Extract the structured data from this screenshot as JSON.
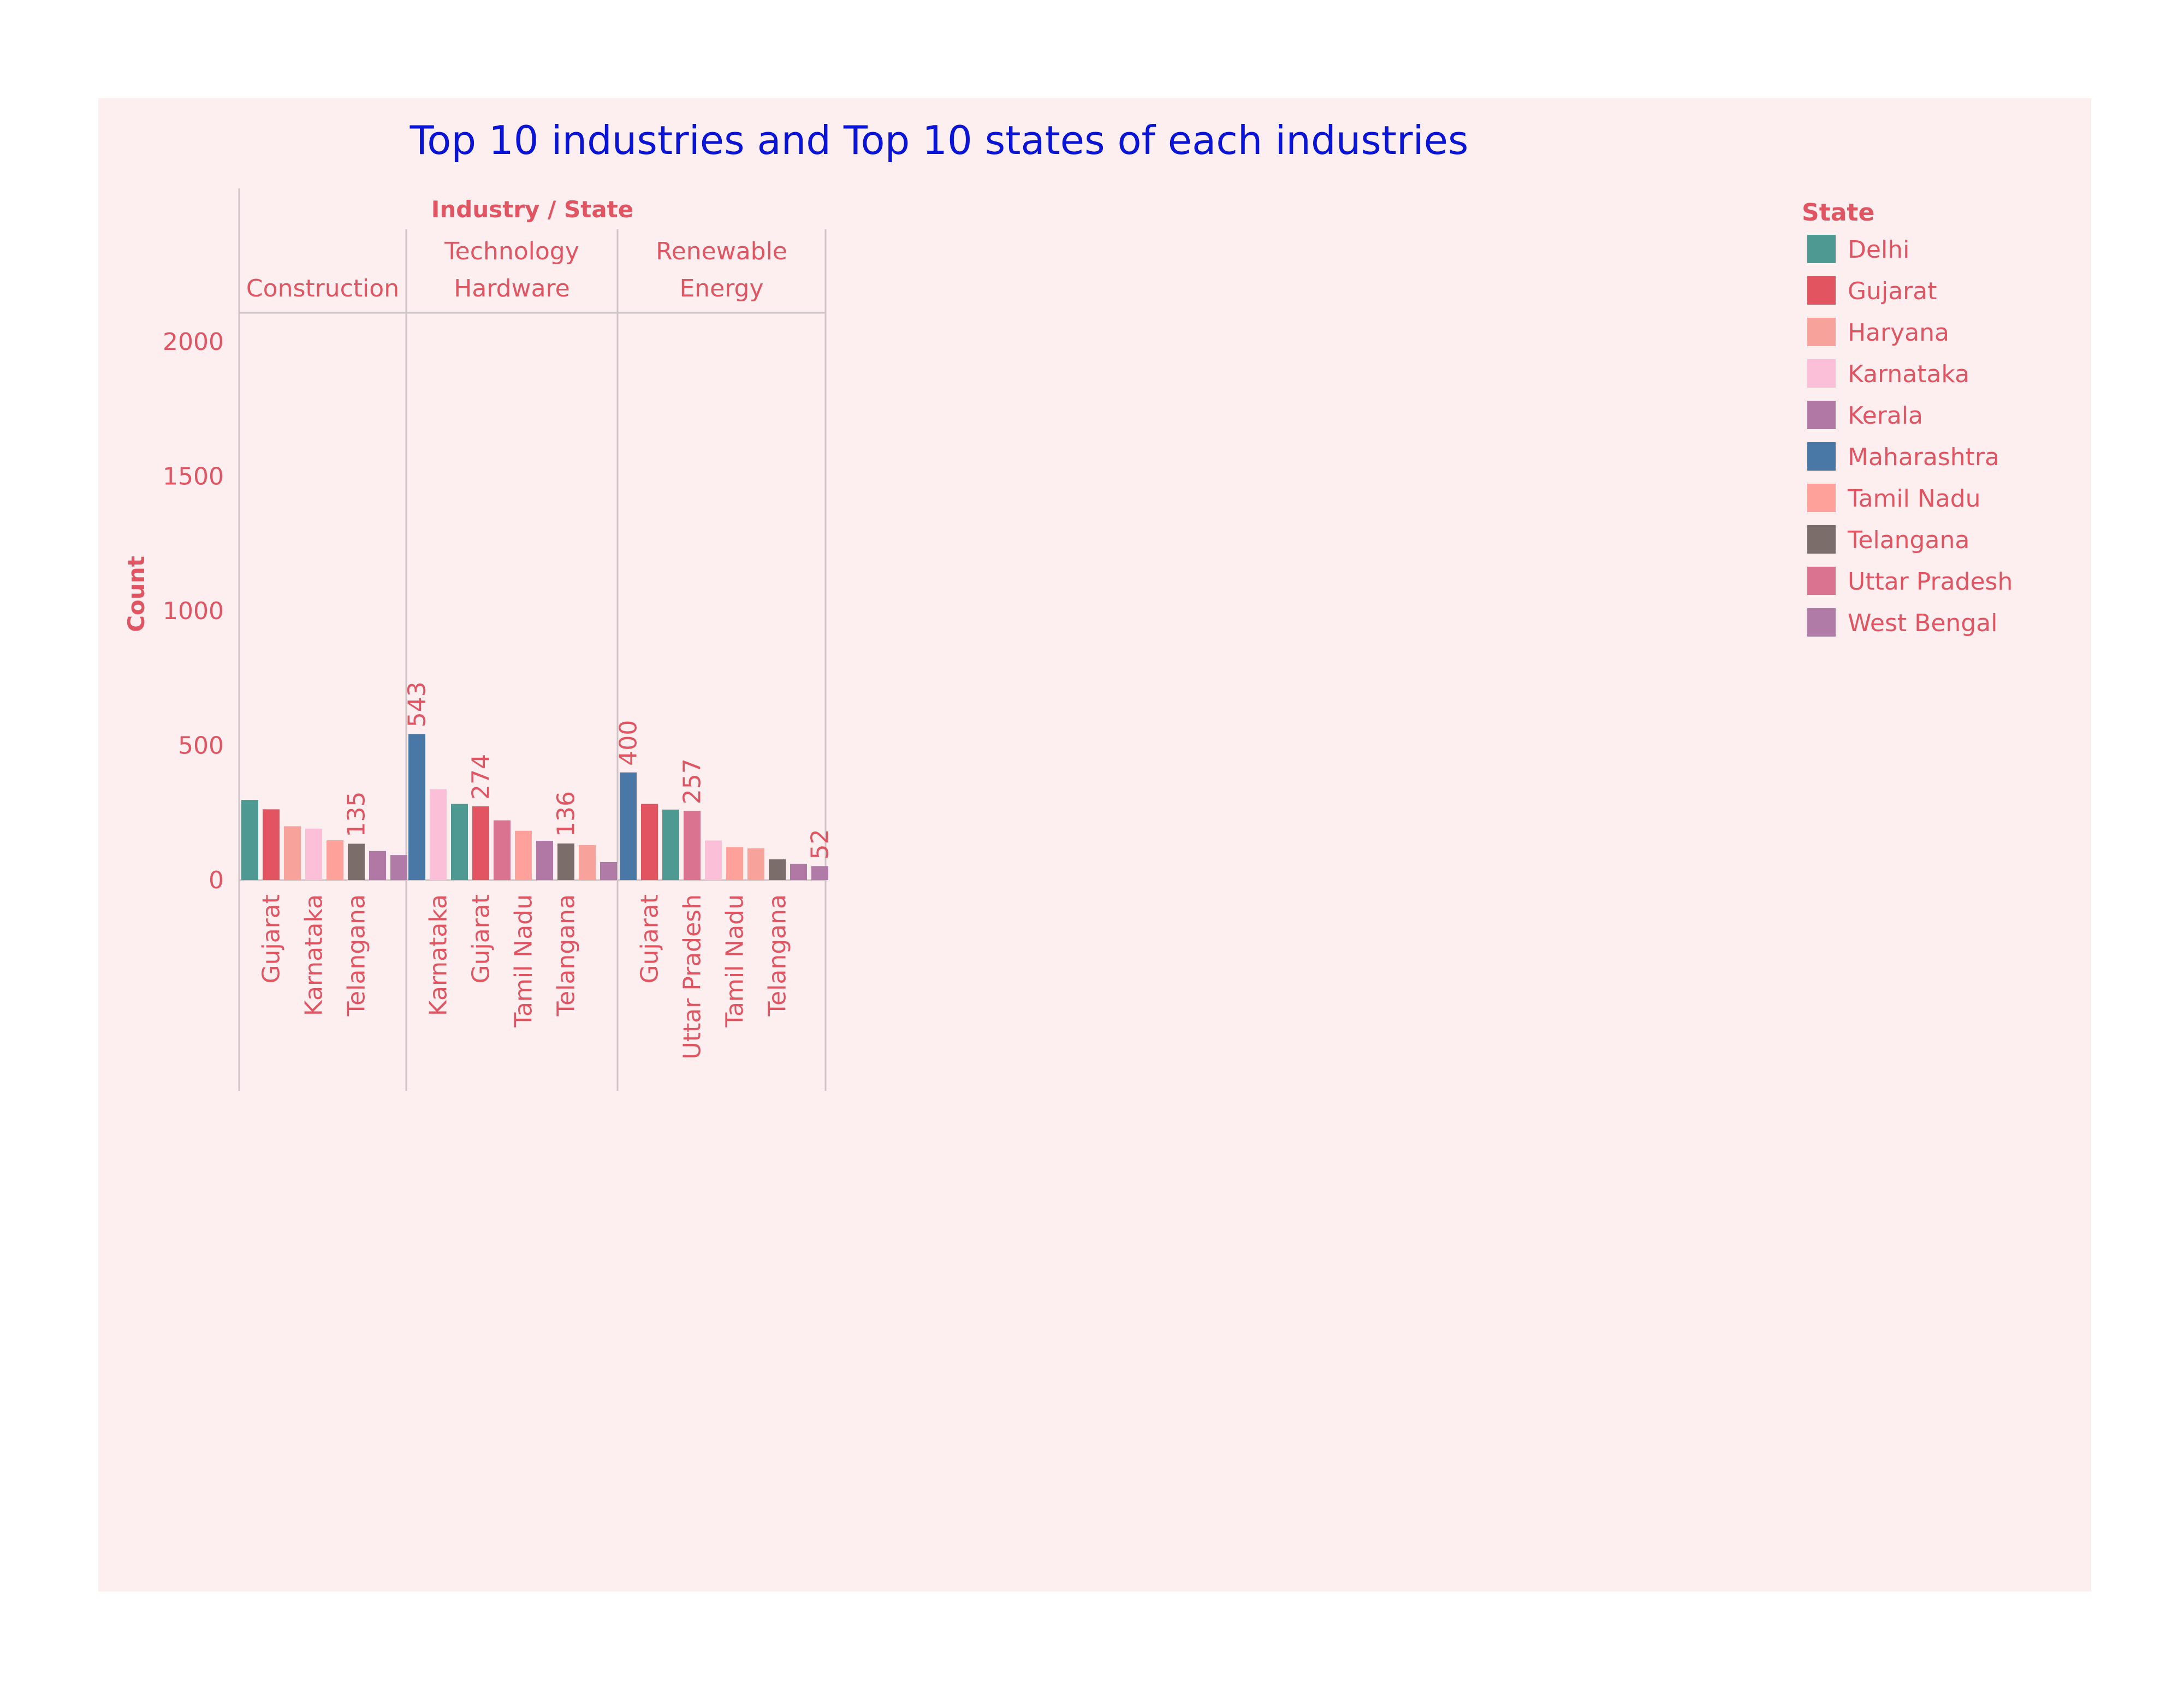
{
  "chart_data": {
    "type": "bar",
    "title": "Top 10 industries and Top 10 states of each industries",
    "header_label": "Industry / State",
    "ylabel": "Count",
    "ylim": [
      0,
      2100
    ],
    "yticks": [
      0,
      500,
      1000,
      1500,
      2000
    ],
    "grid": false,
    "legend_position": "right",
    "colors": {
      "background": "#fdeef0",
      "title": "#0a14d6",
      "text": "#e05561",
      "axis": "#cfc4c6"
    },
    "legend": {
      "title": "State",
      "items": [
        {
          "label": "Delhi",
          "color": "#4e9a92"
        },
        {
          "label": "Gujarat",
          "color": "#e2545f"
        },
        {
          "label": "Haryana",
          "color": "#f7a39b"
        },
        {
          "label": "Karnataka",
          "color": "#fbbfd7"
        },
        {
          "label": "Kerala",
          "color": "#b178a6"
        },
        {
          "label": "Maharashtra",
          "color": "#4a78a6"
        },
        {
          "label": "Tamil Nadu",
          "color": "#fda19a"
        },
        {
          "label": "Telangana",
          "color": "#7b6d69"
        },
        {
          "label": "Uttar Pradesh",
          "color": "#d97390"
        },
        {
          "label": "West Bengal",
          "color": "#b17ba8"
        }
      ]
    },
    "panels": [
      {
        "industry_lines": [
          "Construction"
        ],
        "bars": [
          {
            "state": "Delhi",
            "value": 298,
            "show_label": false,
            "tick": ""
          },
          {
            "state": "Gujarat",
            "value": 263,
            "show_label": false,
            "tick": "Gujarat"
          },
          {
            "state": "Haryana",
            "value": 200,
            "show_label": false,
            "tick": ""
          },
          {
            "state": "Karnataka",
            "value": 191,
            "show_label": false,
            "tick": "Karnataka"
          },
          {
            "state": "Tamil Nadu",
            "value": 148,
            "show_label": false,
            "tick": ""
          },
          {
            "state": "Telangana",
            "value": 135,
            "show_label": true,
            "tick": "Telangana"
          },
          {
            "state": "Kerala",
            "value": 108,
            "show_label": false,
            "tick": ""
          },
          {
            "state": "West Bengal",
            "value": 93,
            "show_label": false,
            "tick": ""
          }
        ]
      },
      {
        "industry_lines": [
          "Technology",
          "Hardware"
        ],
        "bars": [
          {
            "state": "Maharashtra",
            "value": 543,
            "show_label": true,
            "tick": ""
          },
          {
            "state": "Karnataka",
            "value": 338,
            "show_label": false,
            "tick": "Karnataka"
          },
          {
            "state": "Delhi",
            "value": 283,
            "show_label": false,
            "tick": ""
          },
          {
            "state": "Gujarat",
            "value": 274,
            "show_label": true,
            "tick": "Gujarat"
          },
          {
            "state": "Uttar Pradesh",
            "value": 222,
            "show_label": false,
            "tick": ""
          },
          {
            "state": "Tamil Nadu",
            "value": 183,
            "show_label": false,
            "tick": "Tamil Nadu"
          },
          {
            "state": "Kerala",
            "value": 146,
            "show_label": false,
            "tick": ""
          },
          {
            "state": "Telangana",
            "value": 136,
            "show_label": true,
            "tick": "Telangana"
          },
          {
            "state": "Haryana",
            "value": 130,
            "show_label": false,
            "tick": ""
          },
          {
            "state": "West Bengal",
            "value": 67,
            "show_label": false,
            "tick": ""
          }
        ]
      },
      {
        "industry_lines": [
          "Renewable",
          "Energy"
        ],
        "bars": [
          {
            "state": "Maharashtra",
            "value": 400,
            "show_label": true,
            "tick": ""
          },
          {
            "state": "Gujarat",
            "value": 283,
            "show_label": false,
            "tick": "Gujarat"
          },
          {
            "state": "Delhi",
            "value": 262,
            "show_label": false,
            "tick": ""
          },
          {
            "state": "Uttar Pradesh",
            "value": 257,
            "show_label": true,
            "tick": "Uttar Pradesh"
          },
          {
            "state": "Karnataka",
            "value": 147,
            "show_label": false,
            "tick": ""
          },
          {
            "state": "Tamil Nadu",
            "value": 122,
            "show_label": false,
            "tick": "Tamil Nadu"
          },
          {
            "state": "Haryana",
            "value": 118,
            "show_label": false,
            "tick": ""
          },
          {
            "state": "Telangana",
            "value": 77,
            "show_label": false,
            "tick": "Telangana"
          },
          {
            "state": "Kerala",
            "value": 60,
            "show_label": false,
            "tick": ""
          },
          {
            "state": "West Bengal",
            "value": 52,
            "show_label": true,
            "tick": ""
          }
        ]
      }
    ]
  }
}
